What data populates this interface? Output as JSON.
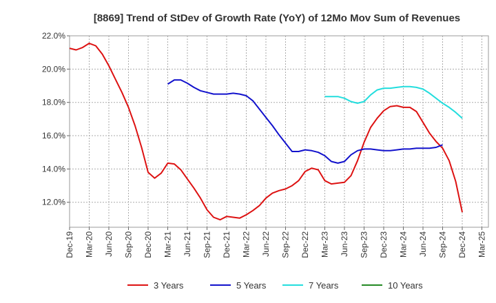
{
  "chart_data": {
    "type": "line",
    "title": "[8869]  Trend of StDev of Growth Rate (YoY) of 12Mo Mov Sum of Revenues",
    "xlabel": "",
    "ylabel": "",
    "ylim": [
      10.5,
      22.0
    ],
    "yticks": [
      12.0,
      14.0,
      16.0,
      18.0,
      20.0,
      22.0
    ],
    "ytick_labels": [
      "12.0%",
      "14.0%",
      "16.0%",
      "18.0%",
      "20.0%",
      "22.0%"
    ],
    "x_start": "Dec-19",
    "x_count": 64,
    "xtick_labels": [
      "Dec-19",
      "Mar-20",
      "Jun-20",
      "Sep-20",
      "Dec-20",
      "Mar-21",
      "Jun-21",
      "Sep-21",
      "Dec-21",
      "Mar-22",
      "Jun-22",
      "Sep-22",
      "Dec-22",
      "Mar-23",
      "Jun-23",
      "Sep-23",
      "Dec-23",
      "Mar-24",
      "Jun-24",
      "Sep-24",
      "Dec-24",
      "Mar-25"
    ],
    "grid": true,
    "legend_position": "bottom",
    "series": [
      {
        "name": "3 Years",
        "color": "#dd1111",
        "start": 0,
        "values": [
          21.25,
          21.15,
          21.3,
          21.55,
          21.4,
          20.9,
          20.2,
          19.4,
          18.6,
          17.7,
          16.6,
          15.3,
          13.8,
          13.45,
          13.75,
          14.35,
          14.3,
          13.95,
          13.4,
          12.85,
          12.25,
          11.55,
          11.1,
          10.95,
          11.15,
          11.1,
          11.05,
          11.25,
          11.5,
          11.8,
          12.25,
          12.55,
          12.7,
          12.8,
          13.0,
          13.3,
          13.85,
          14.05,
          13.95,
          13.3,
          13.1,
          13.15,
          13.2,
          13.6,
          14.5,
          15.6,
          16.5,
          17.05,
          17.5,
          17.75,
          17.8,
          17.7,
          17.7,
          17.45,
          16.8,
          16.15,
          15.65,
          15.25,
          14.5,
          13.25,
          11.4
        ]
      },
      {
        "name": "5 Years",
        "color": "#1111cc",
        "start": 15,
        "values": [
          19.1,
          19.35,
          19.35,
          19.15,
          18.9,
          18.7,
          18.6,
          18.5,
          18.5,
          18.5,
          18.55,
          18.5,
          18.4,
          18.1,
          17.6,
          17.1,
          16.6,
          16.05,
          15.55,
          15.05,
          15.05,
          15.15,
          15.1,
          15.0,
          14.8,
          14.45,
          14.35,
          14.45,
          14.85,
          15.1,
          15.2,
          15.2,
          15.15,
          15.1,
          15.1,
          15.15,
          15.2,
          15.2,
          15.25,
          15.25,
          15.25,
          15.3,
          15.45
        ]
      },
      {
        "name": "7 Years",
        "color": "#22dddd",
        "start": 39,
        "values": [
          18.35,
          18.35,
          18.35,
          18.25,
          18.05,
          17.95,
          18.05,
          18.45,
          18.75,
          18.85,
          18.85,
          18.9,
          18.95,
          18.95,
          18.9,
          18.8,
          18.55,
          18.25,
          17.95,
          17.7,
          17.4,
          17.05
        ]
      },
      {
        "name": "10 Years",
        "color": "#228822",
        "start": 0,
        "values": []
      }
    ]
  }
}
